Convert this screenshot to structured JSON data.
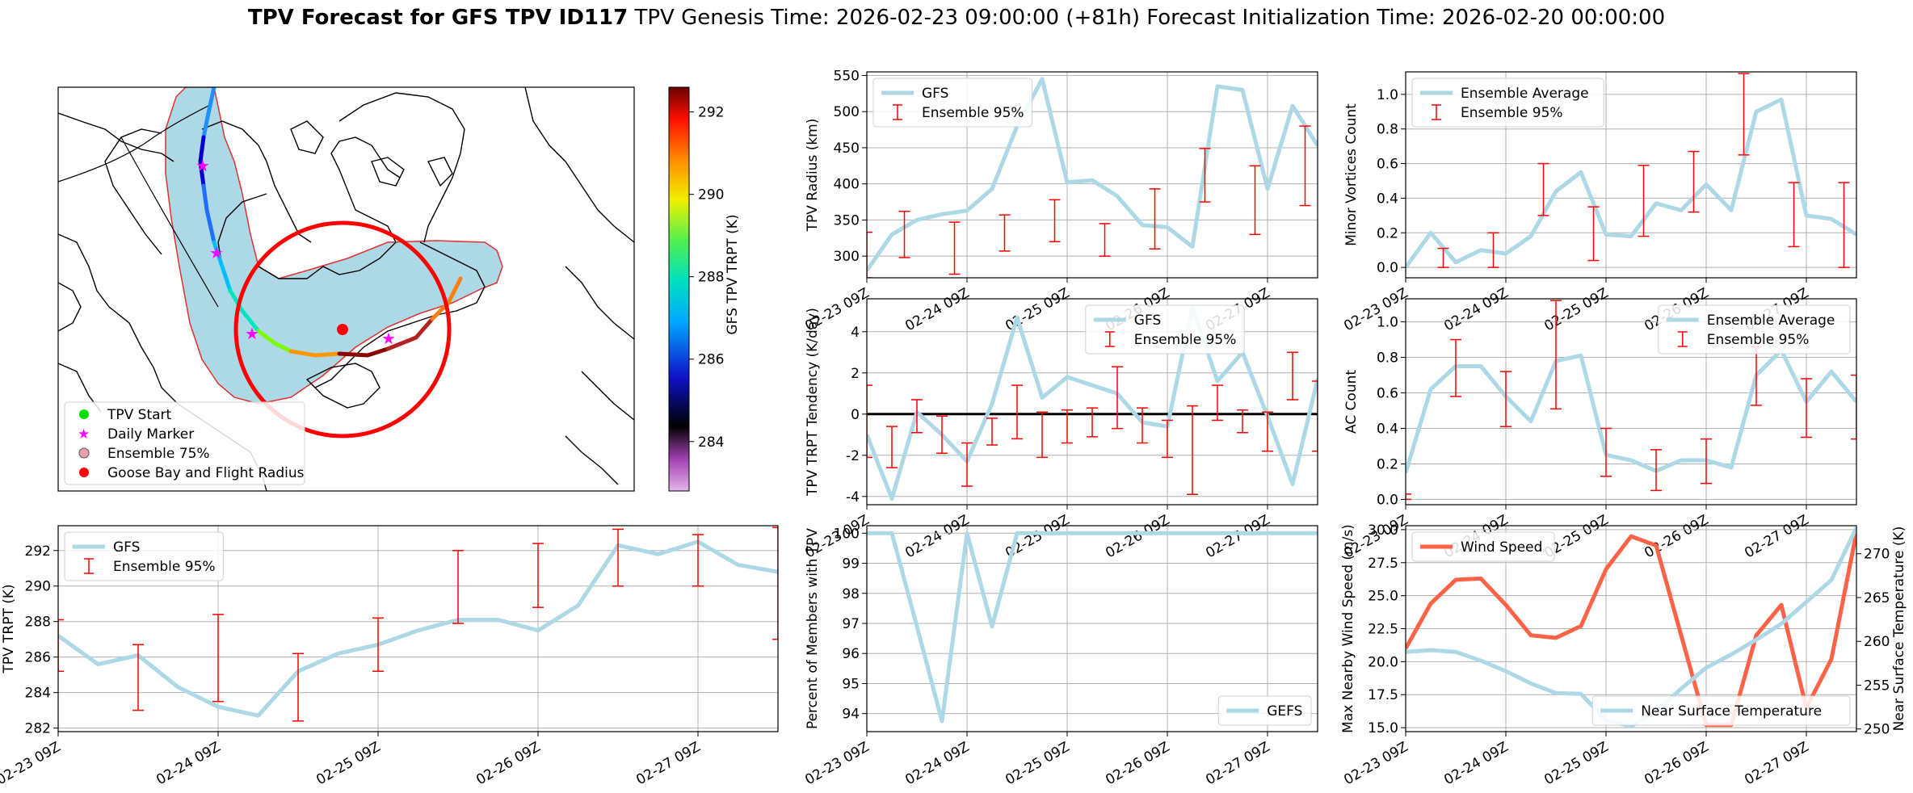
{
  "figure": {
    "title_bold": "TPV Forecast for GFS TPV ID117",
    "title_genesis": "TPV Genesis Time: 2026-02-23 09:00:00 (+81h)",
    "title_init": "Forecast Initialization Time: 2026-02-20 00:00:00"
  },
  "colors": {
    "gfs": "#add8e6",
    "errorbar": "#ff0000",
    "wind": "#ff6347",
    "temp_axis": "#4169e1"
  },
  "map": {
    "colorbar_label": "GFS TPV TRPT (K)",
    "colorbar_ticks": [
      "284",
      "286",
      "288",
      "290",
      "292"
    ],
    "colorbar_range": [
      282.8,
      292.6
    ],
    "legend": [
      "TPV Start",
      "Daily Marker",
      "Ensemble 75%",
      "Goose Bay and Flight Radius"
    ]
  },
  "chart_data": [
    {
      "id": "radius",
      "type": "line",
      "title": "",
      "ylabel": "TPV Radius (km)",
      "xlim": [
        0,
        18
      ],
      "ylim": [
        270,
        555
      ],
      "yticks": [
        300,
        350,
        400,
        450,
        500,
        550
      ],
      "xticks": [
        0,
        4,
        8,
        12,
        16
      ],
      "xtick_labels": [
        "02-23 09Z",
        "02-24 09Z",
        "02-25 09Z",
        "02-26 09Z",
        "02-27 09Z"
      ],
      "legend": [
        "GFS",
        "Ensemble 95%"
      ],
      "series": [
        {
          "name": "GFS",
          "x": [
            0,
            1,
            2,
            3,
            4,
            5,
            6,
            7,
            8,
            9,
            10,
            11,
            12,
            13,
            14,
            15,
            16,
            17,
            18
          ],
          "values": [
            280,
            330,
            350,
            358,
            363,
            393,
            480,
            545,
            402,
            405,
            383,
            343,
            340,
            313,
            535,
            530,
            393,
            508,
            453
          ]
        }
      ],
      "errorbars": [
        {
          "x": 0,
          "low": 270,
          "high": 333
        },
        {
          "x": 1.5,
          "low": 298,
          "high": 362
        },
        {
          "x": 3.5,
          "low": 275,
          "high": 347
        },
        {
          "x": 5.5,
          "low": 307,
          "high": 357
        },
        {
          "x": 7.5,
          "low": 320,
          "high": 378
        },
        {
          "x": 9.5,
          "low": 300,
          "high": 345
        },
        {
          "x": 11.5,
          "low": 310,
          "high": 393
        },
        {
          "x": 13.5,
          "low": 375,
          "high": 449
        },
        {
          "x": 15.5,
          "low": 330,
          "high": 425
        },
        {
          "x": 17.5,
          "low": 370,
          "high": 480
        }
      ]
    },
    {
      "id": "minor_vortices",
      "type": "line",
      "ylabel": "Minor Vortices Count",
      "xlim": [
        0,
        18
      ],
      "ylim": [
        -0.06,
        1.13
      ],
      "yticks": [
        0.0,
        0.2,
        0.4,
        0.6,
        0.8,
        1.0
      ],
      "xticks": [
        0,
        4,
        8,
        12,
        16
      ],
      "xtick_labels": [
        "02-23 09Z",
        "02-24 09Z",
        "02-25 09Z",
        "02-26 09Z",
        "02-27 09Z"
      ],
      "legend": [
        "Ensemble Average",
        "Ensemble 95%"
      ],
      "series": [
        {
          "name": "Ensemble Average",
          "x": [
            0,
            1,
            2,
            3,
            4,
            5,
            6,
            7,
            8,
            9,
            10,
            11,
            12,
            13,
            14,
            15,
            16,
            17,
            18
          ],
          "values": [
            0.0,
            0.2,
            0.03,
            0.1,
            0.08,
            0.18,
            0.44,
            0.55,
            0.19,
            0.18,
            0.37,
            0.33,
            0.48,
            0.33,
            0.9,
            0.97,
            0.3,
            0.28,
            0.19
          ]
        }
      ],
      "errorbars": [
        {
          "x": 1.5,
          "low": 0.0,
          "high": 0.11
        },
        {
          "x": 3.5,
          "low": 0.0,
          "high": 0.2
        },
        {
          "x": 5.5,
          "low": 0.3,
          "high": 0.6
        },
        {
          "x": 7.5,
          "low": 0.04,
          "high": 0.35
        },
        {
          "x": 9.5,
          "low": 0.18,
          "high": 0.59
        },
        {
          "x": 11.5,
          "low": 0.32,
          "high": 0.67
        },
        {
          "x": 13.5,
          "low": 0.65,
          "high": 1.12
        },
        {
          "x": 15.5,
          "low": 0.12,
          "high": 0.49
        },
        {
          "x": 17.5,
          "low": 0.0,
          "high": 0.49
        }
      ]
    },
    {
      "id": "tendency",
      "type": "line",
      "ylabel": "TPV TRPT Tendency (K/day)",
      "xlim": [
        0,
        18
      ],
      "ylim": [
        -4.4,
        5.6
      ],
      "yticks": [
        -4,
        -2,
        0,
        2,
        4
      ],
      "xticks": [
        0,
        4,
        8,
        12,
        16
      ],
      "xtick_labels": [
        "02-23 09Z",
        "02-24 09Z",
        "02-25 09Z",
        "02-26 09Z",
        "02-27 09Z"
      ],
      "legend": [
        "GFS",
        "Ensemble 95%"
      ],
      "zero_line": true,
      "series": [
        {
          "name": "GFS",
          "x": [
            0,
            1,
            2,
            3,
            4,
            5,
            6,
            7,
            8,
            9,
            10,
            11,
            12,
            13,
            14,
            15,
            16,
            17,
            18
          ],
          "values": [
            -1.0,
            -4.1,
            0.1,
            -1.0,
            -2.3,
            0.5,
            4.7,
            0.8,
            1.8,
            1.4,
            1.0,
            -0.4,
            -0.6,
            5.2,
            1.6,
            3.0,
            -0.1,
            -3.4,
            1.7
          ]
        }
      ],
      "errorbars": [
        {
          "x": 0,
          "low": -2.1,
          "high": 1.4
        },
        {
          "x": 1,
          "low": -2.6,
          "high": -0.6
        },
        {
          "x": 2,
          "low": -0.9,
          "high": 0.7
        },
        {
          "x": 3,
          "low": -1.9,
          "high": -0.1
        },
        {
          "x": 4,
          "low": -3.5,
          "high": -1.4
        },
        {
          "x": 5,
          "low": -1.5,
          "high": -0.2
        },
        {
          "x": 6,
          "low": -1.2,
          "high": 1.4
        },
        {
          "x": 7,
          "low": -2.1,
          "high": 0.1
        },
        {
          "x": 8,
          "low": -1.4,
          "high": 0.2
        },
        {
          "x": 9,
          "low": -1.1,
          "high": 0.3
        },
        {
          "x": 10,
          "low": -0.7,
          "high": 2.3
        },
        {
          "x": 11,
          "low": -1.4,
          "high": 0.3
        },
        {
          "x": 12,
          "low": -2.1,
          "high": -0.3
        },
        {
          "x": 13,
          "low": -3.9,
          "high": 0.4
        },
        {
          "x": 14,
          "low": -0.3,
          "high": 1.4
        },
        {
          "x": 15,
          "low": -0.9,
          "high": 0.2
        },
        {
          "x": 16,
          "low": -1.8,
          "high": 0.1
        },
        {
          "x": 17,
          "low": 0.7,
          "high": 3.0
        },
        {
          "x": 18,
          "low": -1.8,
          "high": 1.6
        }
      ]
    },
    {
      "id": "ac_count",
      "type": "line",
      "ylabel": "AC Count",
      "xlim": [
        0,
        18
      ],
      "ylim": [
        -0.03,
        1.13
      ],
      "yticks": [
        0.0,
        0.2,
        0.4,
        0.6,
        0.8,
        1.0
      ],
      "xticks": [
        0,
        4,
        8,
        12,
        16
      ],
      "xtick_labels": [
        "02-23 09Z",
        "02-24 09Z",
        "02-25 09Z",
        "02-26 09Z",
        "02-27 09Z"
      ],
      "legend": [
        "Ensemble Average",
        "Ensemble 95%"
      ],
      "series": [
        {
          "name": "Ensemble Average",
          "x": [
            0,
            1,
            2,
            3,
            4,
            5,
            6,
            7,
            8,
            9,
            10,
            11,
            12,
            13,
            14,
            15,
            16,
            17,
            18
          ],
          "values": [
            0.15,
            0.62,
            0.75,
            0.75,
            0.58,
            0.44,
            0.78,
            0.81,
            0.25,
            0.22,
            0.16,
            0.22,
            0.22,
            0.18,
            0.7,
            0.84,
            0.55,
            0.72,
            0.55
          ]
        }
      ],
      "errorbars": [
        {
          "x": 0,
          "low": 0.0,
          "high": 0.03
        },
        {
          "x": 2,
          "low": 0.58,
          "high": 0.9
        },
        {
          "x": 4,
          "low": 0.41,
          "high": 0.72
        },
        {
          "x": 6,
          "low": 0.51,
          "high": 1.12
        },
        {
          "x": 8,
          "low": 0.13,
          "high": 0.4
        },
        {
          "x": 10,
          "low": 0.05,
          "high": 0.28
        },
        {
          "x": 12,
          "low": 0.09,
          "high": 0.34
        },
        {
          "x": 14,
          "low": 0.53,
          "high": 0.86
        },
        {
          "x": 16,
          "low": 0.35,
          "high": 0.68
        },
        {
          "x": 18,
          "low": 0.34,
          "high": 0.7
        }
      ]
    },
    {
      "id": "trpt",
      "type": "line",
      "ylabel": "TPV TRPT (K)",
      "xlim": [
        0,
        18
      ],
      "ylim": [
        281.8,
        293.4
      ],
      "yticks": [
        282,
        284,
        286,
        288,
        290,
        292
      ],
      "xticks": [
        0,
        4,
        8,
        12,
        16
      ],
      "xtick_labels": [
        "02-23 09Z",
        "02-24 09Z",
        "02-25 09Z",
        "02-26 09Z",
        "02-27 09Z"
      ],
      "legend": [
        "GFS",
        "Ensemble 95%"
      ],
      "series": [
        {
          "name": "GFS",
          "x": [
            0,
            1,
            2,
            3,
            4,
            5,
            6,
            7,
            8,
            9,
            10,
            11,
            12,
            13,
            14,
            15,
            16,
            17,
            18
          ],
          "values": [
            287.2,
            285.6,
            286.1,
            284.3,
            283.2,
            282.7,
            285.2,
            286.2,
            286.7,
            287.5,
            288.1,
            288.1,
            287.5,
            288.9,
            292.3,
            291.8,
            292.5,
            291.2,
            290.8
          ]
        }
      ],
      "errorbars": [
        {
          "x": 0,
          "low": 285.2,
          "high": 288.1
        },
        {
          "x": 2,
          "low": 283.0,
          "high": 286.7
        },
        {
          "x": 4,
          "low": 283.5,
          "high": 288.4
        },
        {
          "x": 6,
          "low": 282.4,
          "high": 286.2
        },
        {
          "x": 8,
          "low": 285.2,
          "high": 288.2
        },
        {
          "x": 10,
          "low": 287.9,
          "high": 292.0
        },
        {
          "x": 12,
          "low": 288.8,
          "high": 292.4
        },
        {
          "x": 14,
          "low": 290.0,
          "high": 293.2
        },
        {
          "x": 16,
          "low": 290.0,
          "high": 292.9
        },
        {
          "x": 18,
          "low": 287.0,
          "high": 293.3
        }
      ]
    },
    {
      "id": "percent_members",
      "type": "line",
      "ylabel": "Percent of Members with TPV",
      "xlim": [
        0,
        18
      ],
      "ylim": [
        93.4,
        100.25
      ],
      "yticks": [
        94,
        95,
        96,
        97,
        98,
        99,
        100
      ],
      "xticks": [
        0,
        4,
        8,
        12,
        16
      ],
      "xtick_labels": [
        "02-23 09Z",
        "02-24 09Z",
        "02-25 09Z",
        "02-26 09Z",
        "02-27 09Z"
      ],
      "legend": [
        "GEFS"
      ],
      "series": [
        {
          "name": "GEFS",
          "x": [
            0,
            1,
            2,
            3,
            4,
            5,
            6,
            7,
            8,
            9,
            10,
            11,
            12,
            13,
            14,
            15,
            16,
            17,
            18
          ],
          "values": [
            100,
            100,
            96.9,
            93.75,
            100,
            96.9,
            100,
            100,
            100,
            100,
            100,
            100,
            100,
            100,
            100,
            100,
            100,
            100,
            100
          ]
        }
      ]
    },
    {
      "id": "wind_temp",
      "type": "line",
      "ylabel": "Max Nearby Wind Speed (m/s)",
      "ylabel_right": "Near Surface Temperature (K)",
      "xlim": [
        0,
        18
      ],
      "ylim": [
        14.7,
        30.3
      ],
      "yticks": [
        15.0,
        17.5,
        20.0,
        22.5,
        25.0,
        27.5,
        30.0
      ],
      "ylim_right": [
        249.7,
        273.2
      ],
      "yticks_right": [
        250,
        255,
        260,
        265,
        270
      ],
      "xticks": [
        0,
        4,
        8,
        12,
        16
      ],
      "xtick_labels": [
        "02-23 09Z",
        "02-24 09Z",
        "02-25 09Z",
        "02-26 09Z",
        "02-27 09Z"
      ],
      "legend": [
        "Wind Speed"
      ],
      "legend_right": [
        "Near Surface Temperature"
      ],
      "series": [
        {
          "name": "Wind Speed",
          "axis": "left",
          "x": [
            0,
            1,
            2,
            3,
            4,
            5,
            6,
            7,
            8,
            9,
            10,
            11,
            12,
            13,
            14,
            15,
            16,
            17,
            18
          ],
          "values": [
            21.0,
            24.4,
            26.2,
            26.3,
            24.3,
            22.0,
            21.8,
            22.7,
            27.0,
            29.5,
            28.8,
            22.0,
            15.2,
            15.2,
            22.0,
            24.3,
            16.5,
            20.2,
            29.8
          ]
        },
        {
          "name": "Near Surface Temperature",
          "axis": "right",
          "x": [
            0,
            1,
            2,
            3,
            4,
            5,
            6,
            7,
            8,
            9,
            10,
            11,
            12,
            13,
            14,
            15,
            16,
            17,
            18
          ],
          "values": [
            258.8,
            259.0,
            258.8,
            257.8,
            256.6,
            255.2,
            254.1,
            254.0,
            251.0,
            250.3,
            252.0,
            254.6,
            257.0,
            258.5,
            260.2,
            262.0,
            264.5,
            267.0,
            273.0
          ]
        }
      ]
    }
  ]
}
